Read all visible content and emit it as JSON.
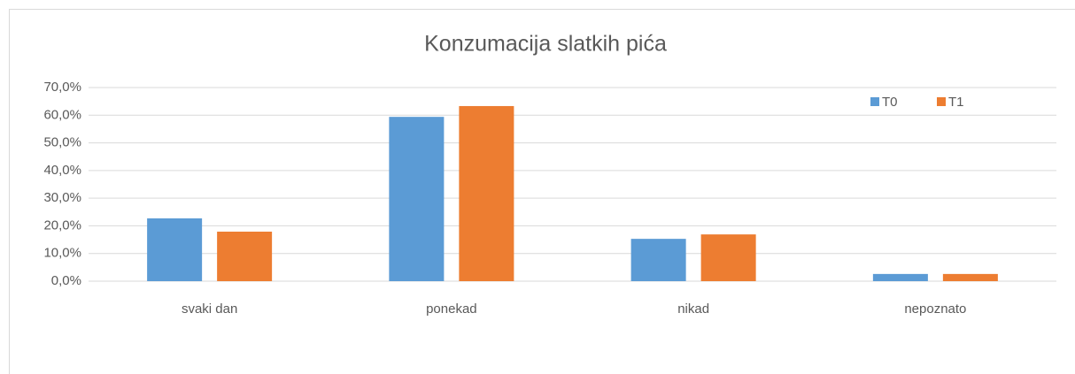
{
  "chart_data": {
    "type": "bar",
    "title": "Konzumacija slatkih pića",
    "categories": [
      "svaki dan",
      "ponekad",
      "nikad",
      "nepoznato"
    ],
    "series": [
      {
        "name": "T0",
        "color": "#5b9bd5",
        "values": [
          22.7,
          59.4,
          15.3,
          2.6
        ]
      },
      {
        "name": "T1",
        "color": "#ed7d31",
        "values": [
          17.9,
          63.3,
          16.9,
          2.6
        ]
      }
    ],
    "ylim": [
      0,
      70
    ],
    "yticks": [
      {
        "value": 0,
        "label": "0,0%"
      },
      {
        "value": 10,
        "label": "10,0%"
      },
      {
        "value": 20,
        "label": "20,0%"
      },
      {
        "value": 30,
        "label": "30,0%"
      },
      {
        "value": 40,
        "label": "40,0%"
      },
      {
        "value": 50,
        "label": "50,0%"
      },
      {
        "value": 60,
        "label": "60,0%"
      },
      {
        "value": 70,
        "label": "70,0%"
      }
    ],
    "grid": true,
    "legend": "top-right"
  }
}
